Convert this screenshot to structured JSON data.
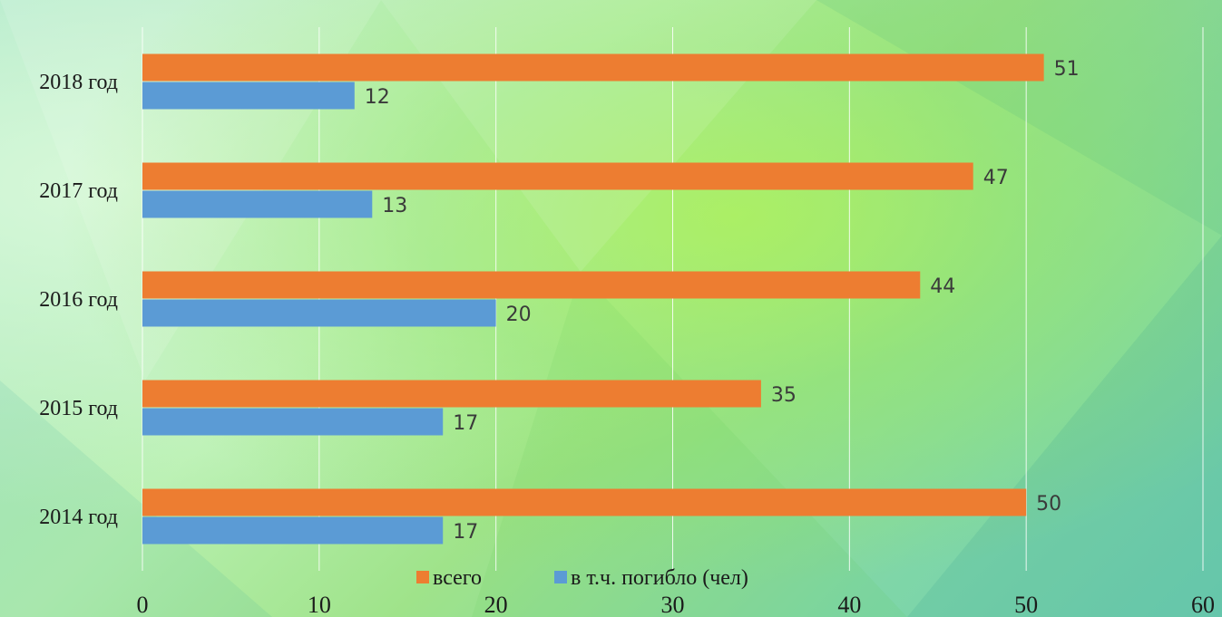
{
  "chart_data": {
    "type": "bar",
    "orientation": "horizontal",
    "categories": [
      "2018 год",
      "2017 год",
      "2016 год",
      "2015 год",
      "2014 год"
    ],
    "series": [
      {
        "name": "всего",
        "values": [
          51,
          47,
          44,
          35,
          50
        ],
        "color": "#ED7D31"
      },
      {
        "name": "в т.ч. погибло (чел)",
        "values": [
          12,
          13,
          20,
          17,
          17
        ],
        "color": "#5B9BD5"
      }
    ],
    "xticks": [
      0,
      10,
      20,
      30,
      40,
      50,
      60
    ],
    "xlim": [
      0,
      60
    ],
    "grid": true,
    "legend_position": "bottom",
    "title": "",
    "xlabel": "",
    "ylabel": ""
  }
}
